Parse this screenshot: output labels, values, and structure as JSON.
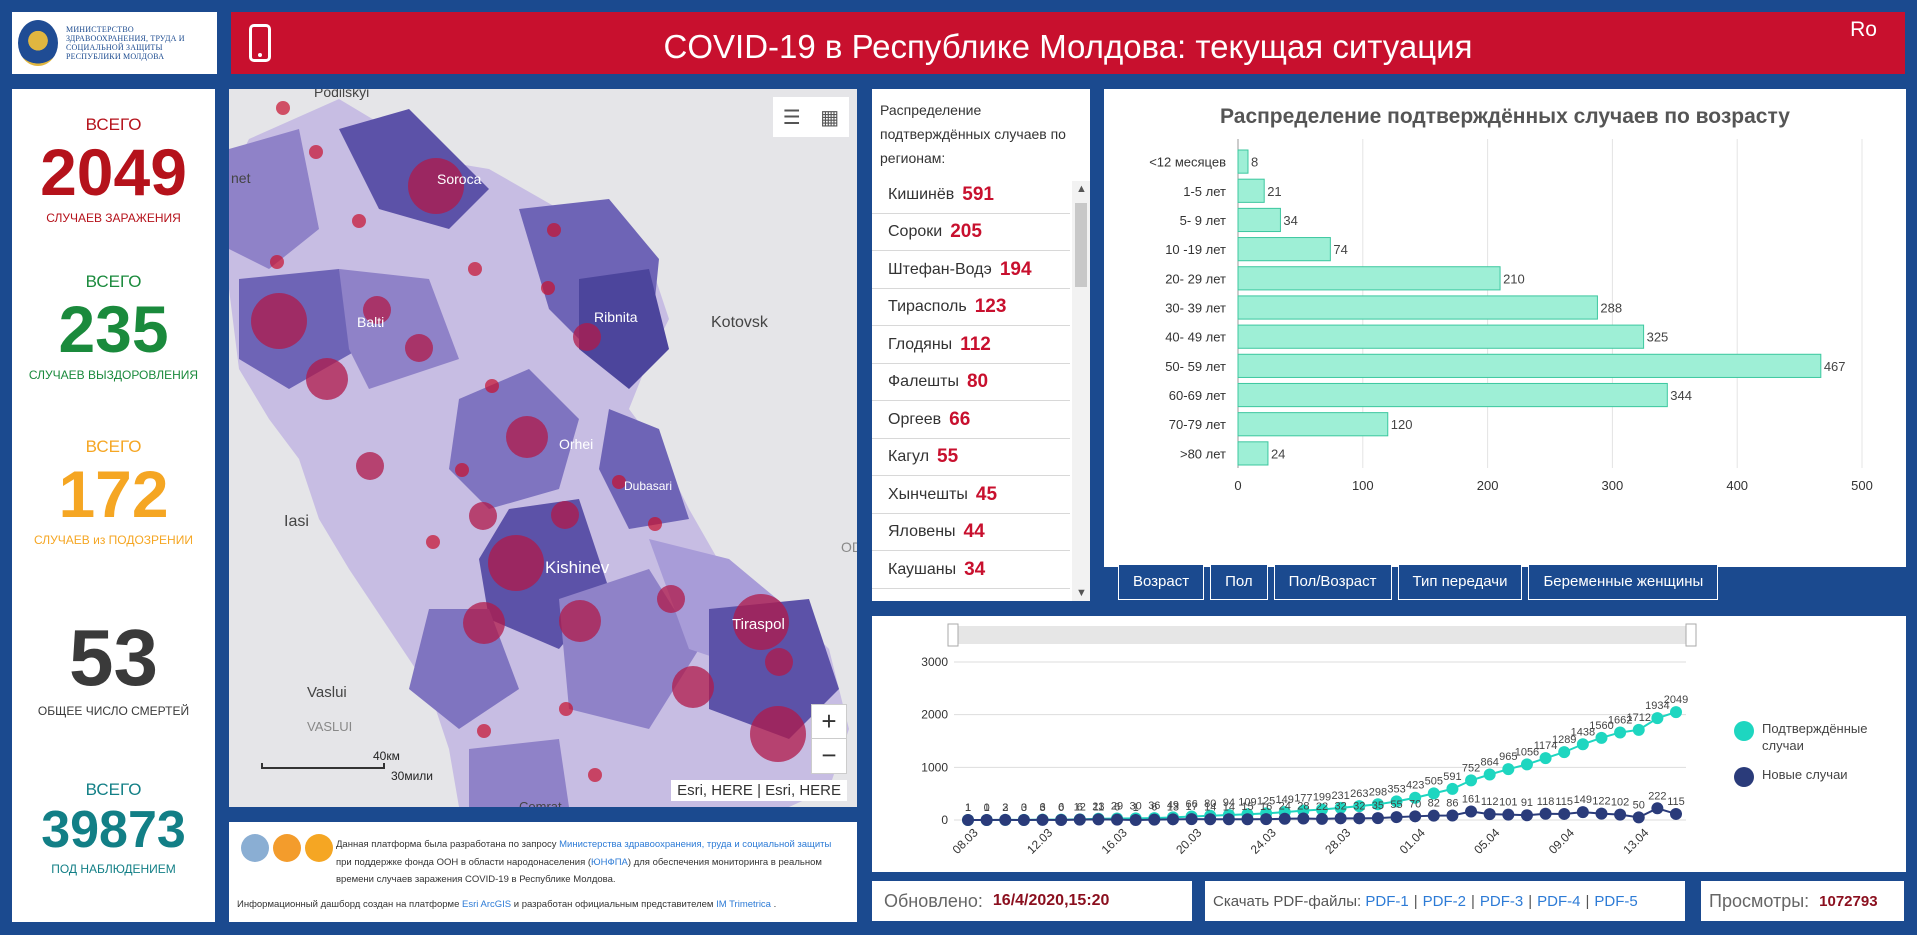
{
  "header": {
    "ministry": "МИНИСТЕРСТВО ЗДРАВООХРАНЕНИЯ, ТРУДА И СОЦИАЛЬНОЙ ЗАЩИТЫ РЕСПУБЛИКИ МОЛДОВА",
    "title": "COVID-19 в Республике Молдова: текущая ситуация",
    "lang": "Ro"
  },
  "stats": [
    {
      "label": "ВСЕГО",
      "value": "2049",
      "sub": "СЛУЧАЕВ ЗАРАЖЕНИЯ",
      "color": "#b5121b"
    },
    {
      "label": "ВСЕГО",
      "value": "235",
      "sub": "СЛУЧАЕВ ВЫЗДОРОВЛЕНИЯ",
      "color": "#1a8a3c"
    },
    {
      "label": "ВСЕГО",
      "value": "172",
      "sub": "СЛУЧАЕВ из ПОДОЗРЕНИИ",
      "color": "#f5a623"
    },
    {
      "label": "",
      "value": "53",
      "sub": "ОБЩЕЕ ЧИСЛО СМЕРТЕЙ",
      "color": "#3a3a3a"
    },
    {
      "label": "ВСЕГО",
      "value": "39873",
      "sub": "ПОД НАБЛЮДЕНИЕМ",
      "color": "#127f86"
    }
  ],
  "map": {
    "labels": [
      "Podilskyi",
      "net",
      "Soroca",
      "Balti",
      "Ribnita",
      "Kotovsk",
      "Orhei",
      "Dubasari",
      "Iasi",
      "Kishinev",
      "ODES",
      "Tiraspol",
      "Vaslui",
      "VASLUI",
      "Comrat"
    ],
    "scale_km": "40км",
    "scale_mi": "30мили",
    "attribution": "Esri, HERE | Esri, HERE",
    "zoom_in": "+",
    "zoom_out": "−"
  },
  "regions": {
    "title": "Распределение подтверждённых случаев по регионам:",
    "items": [
      {
        "name": "Кишинёв",
        "value": "591"
      },
      {
        "name": "Сороки",
        "value": "205"
      },
      {
        "name": "Штефан-Водэ",
        "value": "194"
      },
      {
        "name": "Тирасполь",
        "value": "123"
      },
      {
        "name": "Глодяны",
        "value": "112"
      },
      {
        "name": "Фалешты",
        "value": "80"
      },
      {
        "name": "Оргеев",
        "value": "66"
      },
      {
        "name": "Кагул",
        "value": "55"
      },
      {
        "name": "Хынчешты",
        "value": "45"
      },
      {
        "name": "Яловены",
        "value": "44"
      },
      {
        "name": "Каушаны",
        "value": "34"
      }
    ]
  },
  "tabs": [
    "Возраст",
    "Пол",
    "Пол/Возраст",
    "Тип передачи",
    "Беременные женщины"
  ],
  "info": {
    "line1_a": "Данная платформа была разработана по запросу ",
    "line1_link": "Министерства здравоохранения, труда и социальной защиты",
    "line1_b": " при поддержке фонда ООН в области народонаселения (",
    "line1_link2": "ЮНФПА",
    "line1_c": ") для обеспечения мониторинга в реальном времени случаев заражения COVID-19 в Республике Молдова.",
    "line2_a": "Информационный дашборд создан на платформе ",
    "line2_link": "Esri ArcGIS",
    "line2_b": " и разработан официальным представителем ",
    "line2_link2": "IM Trimetrica",
    "line2_c": " ."
  },
  "footer": {
    "updated_label": "Обновлено:",
    "updated_value": "16/4/2020,15:20",
    "pdf_label": "Скачать PDF-файлы:",
    "pdfs": [
      "PDF-1",
      "PDF-2",
      "PDF-3",
      "PDF-4",
      "PDF-5"
    ],
    "views_label": "Просмотры:",
    "views_value": "1072793"
  },
  "chart_data": [
    {
      "type": "bar",
      "title": "Распределение подтверждённых случаев по возрасту",
      "categories": [
        "<12 месяцев",
        "1-5 лет",
        "5- 9 лет",
        "10 -19 лет",
        "20- 29 лет",
        "30- 39 лет",
        "40- 49 лет",
        "50- 59 лет",
        "60-69 лет",
        "70-79 лет",
        ">80 лет"
      ],
      "values": [
        8,
        21,
        34,
        74,
        210,
        288,
        325,
        467,
        344,
        120,
        24
      ],
      "xlim": [
        0,
        500
      ],
      "xticks": [
        0,
        100,
        200,
        300,
        400,
        500
      ],
      "color": "#9eefd6"
    },
    {
      "type": "line",
      "x_ticks": [
        "08.03",
        "12.03",
        "16.03",
        "20.03",
        "24.03",
        "28.03",
        "01.04",
        "05.04",
        "09.04",
        "13.04"
      ],
      "ylim": [
        0,
        3000
      ],
      "yticks": [
        0,
        1000,
        2000,
        3000
      ],
      "series": [
        {
          "name": "Подтверждённые случаи",
          "color": "#1ed6c0",
          "values": [
            1,
            1,
            3,
            3,
            6,
            6,
            12,
            23,
            29,
            30,
            36,
            49,
            66,
            80,
            94,
            109,
            125,
            149,
            177,
            199,
            231,
            263,
            298,
            353,
            423,
            505,
            591,
            752,
            864,
            965,
            1056,
            1174,
            1289,
            1438,
            1560,
            1662,
            1712,
            1934,
            2049
          ]
        },
        {
          "name": "Новые случаи",
          "color": "#2a3b7a",
          "values": [
            1,
            0,
            2,
            0,
            3,
            0,
            6,
            11,
            6,
            1,
            6,
            13,
            17,
            14,
            14,
            15,
            16,
            24,
            28,
            22,
            32,
            32,
            35,
            55,
            70,
            82,
            86,
            161,
            112,
            101,
            91,
            118,
            115,
            149,
            122,
            102,
            50,
            222,
            115
          ]
        }
      ]
    }
  ]
}
